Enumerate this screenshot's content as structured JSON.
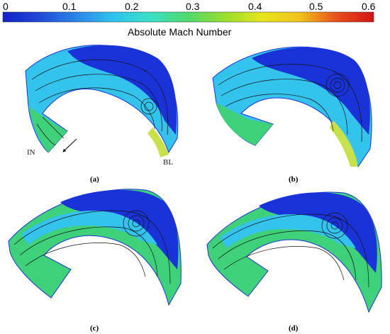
{
  "colorbar": {
    "title": "Absolute Mach Number",
    "ticks": [
      "0",
      "0.1",
      "0.2",
      "0.3",
      "0.4",
      "0.5",
      "0.6"
    ],
    "colors": [
      "#1420c8",
      "#1f4bd8",
      "#2c86ea",
      "#2fc4ee",
      "#39e0c4",
      "#4fd96a",
      "#9ade2c",
      "#e6e51f",
      "#f0a21a",
      "#e8501c",
      "#d21414"
    ]
  },
  "panels": [
    {
      "caption": "(a)",
      "annotations": [
        "IN",
        "BL"
      ]
    },
    {
      "caption": "(b)",
      "annotations": []
    },
    {
      "caption": "(c)",
      "annotations": []
    },
    {
      "caption": "(d)",
      "annotations": []
    }
  ],
  "palette": {
    "blue_dark": "#1a33d8",
    "blue_mid": "#2a63e6",
    "cyan": "#34c3ec",
    "green": "#3fd07a",
    "yellow": "#c8e04a",
    "line": "#111111"
  }
}
